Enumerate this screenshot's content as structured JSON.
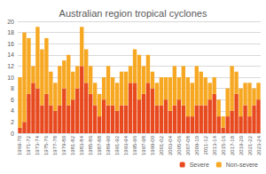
{
  "chart_data": {
    "type": "bar",
    "title": "Australian region tropical cyclones",
    "categories": [
      "1969-70",
      null,
      "1971-72",
      null,
      "1973-74",
      null,
      "1975-76",
      null,
      "1977-78",
      null,
      "1979-80",
      null,
      "1981-82",
      null,
      "1983-84",
      null,
      "1985-86",
      null,
      "1987-88",
      null,
      "1989-90",
      null,
      "1991-92",
      null,
      "1993-94",
      null,
      "1995-96",
      null,
      "1997-98",
      null,
      "1999-00",
      null,
      "2001-02",
      null,
      "2003-04",
      null,
      "2005-06",
      null,
      "2007-08",
      null,
      "2009-10",
      null,
      "2011-12",
      null,
      "2013-14",
      null,
      "2015-16",
      null,
      "2017-18",
      null,
      "2019-20",
      null,
      "2021-22",
      null,
      "2023-24"
    ],
    "series": [
      {
        "name": "Severe",
        "color": "#e84a1f",
        "values": [
          1,
          2,
          7,
          9,
          8,
          5,
          7,
          5,
          4,
          5,
          8,
          5,
          6,
          8,
          12,
          9,
          7,
          5,
          3,
          6,
          5,
          5,
          4,
          5,
          5,
          9,
          9,
          6,
          7,
          9,
          8,
          5,
          5,
          6,
          4,
          5,
          6,
          5,
          3,
          3,
          5,
          5,
          5,
          6,
          7,
          3,
          1,
          3,
          4,
          7,
          3,
          5,
          3,
          5,
          6
        ]
      },
      {
        "name": "Non-severe",
        "color": "#f7a823",
        "values": [
          9,
          16,
          10,
          3,
          11,
          10,
          10,
          6,
          5,
          7,
          5,
          9,
          5,
          4,
          7,
          6,
          5,
          4,
          4,
          4,
          7,
          5,
          5,
          6,
          6,
          3,
          6,
          8,
          5,
          5,
          3,
          4,
          5,
          4,
          6,
          7,
          4,
          7,
          7,
          6,
          7,
          6,
          5,
          3,
          3,
          3,
          2,
          5,
          8,
          4,
          5,
          4,
          6,
          3,
          3
        ]
      }
    ],
    "stacked": true,
    "ylim": [
      0,
      20
    ],
    "yticks": [
      0,
      2,
      4,
      6,
      8,
      10,
      12,
      14,
      16,
      18,
      20
    ],
    "grid": true,
    "legend": "bottom-right"
  }
}
